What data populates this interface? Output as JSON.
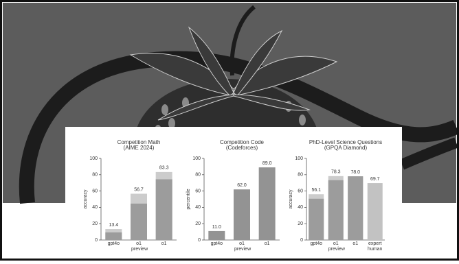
{
  "chart_data": [
    {
      "type": "bar",
      "title": "Competition Math",
      "subtitle": "(AIME 2024)",
      "ylabel": "accuracy",
      "categories": [
        "gpt4o",
        "o1 preview",
        "o1"
      ],
      "series": [
        {
          "color": "#cccccc",
          "values": [
            13.4,
            56.7,
            83.3
          ],
          "value_labels": [
            "13.4",
            "56.7",
            "83.3"
          ]
        },
        {
          "color": "#9c9c9c",
          "values": [
            9.3,
            44.6,
            74.4
          ]
        }
      ],
      "ylim": [
        0,
        100
      ],
      "yticks": [
        0,
        20,
        40,
        60,
        80,
        100
      ]
    },
    {
      "type": "bar",
      "title": "Competition Code",
      "subtitle": "(Codeforces)",
      "ylabel": "percentile",
      "categories": [
        "gpt4o",
        "o1 preview",
        "o1"
      ],
      "series": [
        {
          "color": "#939393",
          "values": [
            11.0,
            62.0,
            89.0
          ],
          "value_labels": [
            "11.0",
            "62.0",
            "89.0"
          ]
        }
      ],
      "ylim": [
        0,
        100
      ],
      "yticks": [
        0,
        20,
        40,
        60,
        80,
        100
      ]
    },
    {
      "type": "bar",
      "title": "PhD-Level Science Questions",
      "subtitle": "(GPQA Diamond)",
      "ylabel": "accuracy",
      "categories": [
        "gpt4o",
        "o1 preview",
        "o1",
        "expert human"
      ],
      "series": [
        {
          "colors": [
            "#cccccc",
            "#cccccc",
            "#9c9c9c",
            "#c2c2c2"
          ],
          "values": [
            56.1,
            78.3,
            78.0,
            69.7
          ],
          "value_labels": [
            "56.1",
            "78.3",
            "78.0",
            "69.7"
          ]
        },
        {
          "color": "#9c9c9c",
          "values": [
            50.6,
            73.3,
            78.0,
            null
          ]
        }
      ],
      "ylim": [
        0,
        100
      ],
      "yticks": [
        0,
        20,
        40,
        60,
        80,
        100
      ]
    }
  ]
}
